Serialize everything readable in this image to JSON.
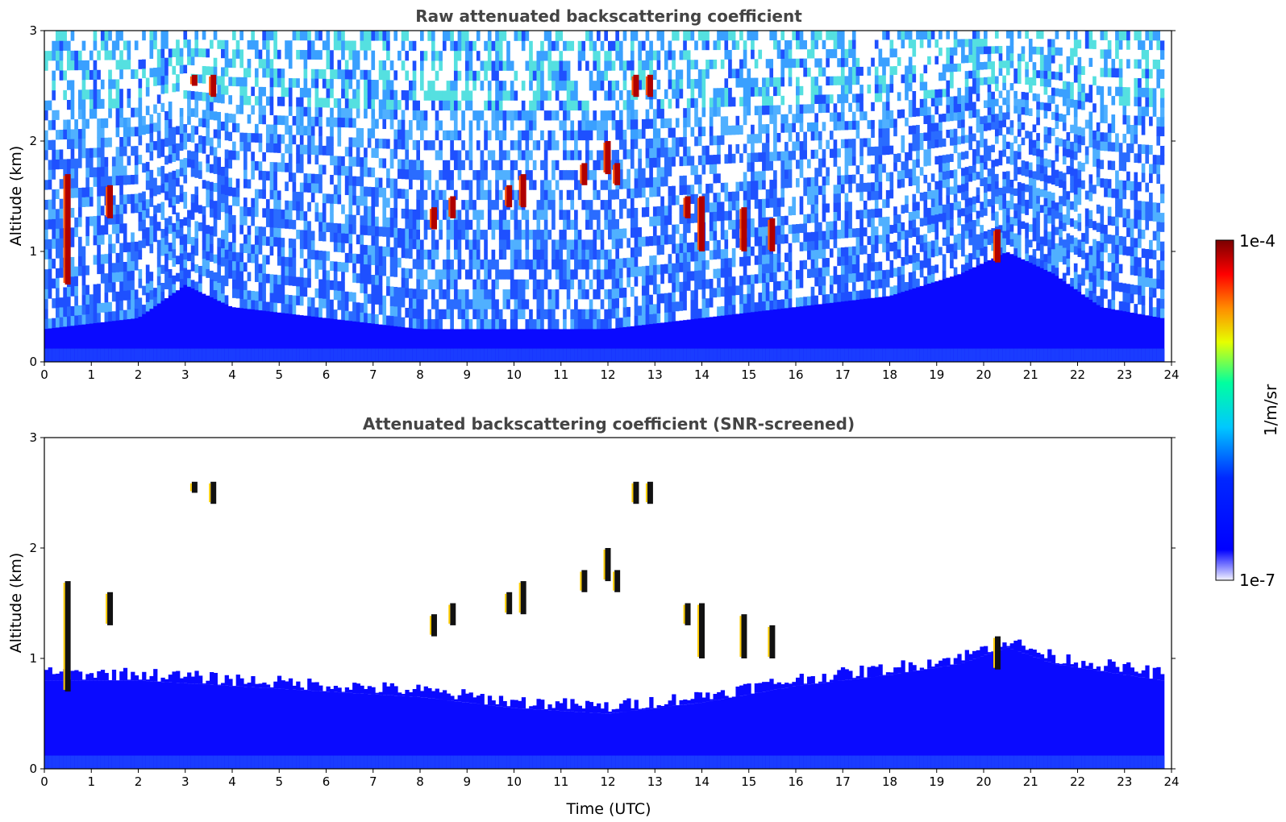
{
  "chart_data": [
    {
      "type": "heatmap",
      "title": "Raw attenuated backscattering coefficient",
      "xlabel": "",
      "ylabel": "Altitude (km)",
      "xlim": [
        0,
        24
      ],
      "ylim": [
        0,
        3
      ],
      "xticks": [
        "0",
        "1",
        "2",
        "3",
        "4",
        "5",
        "6",
        "7",
        "8",
        "9",
        "10",
        "11",
        "12",
        "13",
        "14",
        "15",
        "16",
        "17",
        "18",
        "19",
        "20",
        "21",
        "22",
        "23",
        "24"
      ],
      "yticks": [
        "0",
        "1",
        "2",
        "3"
      ],
      "data_end_time": 23.8,
      "boundary_layer_top_km": [
        [
          0,
          0.3
        ],
        [
          2,
          0.4
        ],
        [
          3,
          0.7
        ],
        [
          4,
          0.5
        ],
        [
          6,
          0.4
        ],
        [
          8,
          0.3
        ],
        [
          10,
          0.3
        ],
        [
          12,
          0.3
        ],
        [
          14,
          0.4
        ],
        [
          16,
          0.5
        ],
        [
          18,
          0.6
        ],
        [
          19.5,
          0.8
        ],
        [
          20.5,
          1.0
        ],
        [
          21.5,
          0.8
        ],
        [
          22.5,
          0.5
        ],
        [
          23.8,
          0.4
        ]
      ],
      "cloud_features": [
        {
          "t": 0.5,
          "z0": 0.7,
          "z1": 1.7
        },
        {
          "t": 1.4,
          "z0": 1.3,
          "z1": 1.6
        },
        {
          "t": 3.2,
          "z0": 2.5,
          "z1": 2.6
        },
        {
          "t": 3.6,
          "z0": 2.4,
          "z1": 2.6
        },
        {
          "t": 8.3,
          "z0": 1.2,
          "z1": 1.4
        },
        {
          "t": 8.7,
          "z0": 1.3,
          "z1": 1.5
        },
        {
          "t": 9.9,
          "z0": 1.4,
          "z1": 1.6
        },
        {
          "t": 10.2,
          "z0": 1.4,
          "z1": 1.7
        },
        {
          "t": 11.5,
          "z0": 1.6,
          "z1": 1.8
        },
        {
          "t": 12.0,
          "z0": 1.7,
          "z1": 2.0
        },
        {
          "t": 12.2,
          "z0": 1.6,
          "z1": 1.8
        },
        {
          "t": 12.6,
          "z0": 2.4,
          "z1": 2.6
        },
        {
          "t": 12.9,
          "z0": 2.4,
          "z1": 2.6
        },
        {
          "t": 13.7,
          "z0": 1.3,
          "z1": 1.5
        },
        {
          "t": 14.0,
          "z0": 1.0,
          "z1": 1.5
        },
        {
          "t": 14.9,
          "z0": 1.0,
          "z1": 1.4
        },
        {
          "t": 15.5,
          "z0": 1.0,
          "z1": 1.3
        },
        {
          "t": 20.3,
          "z0": 0.9,
          "z1": 1.2
        }
      ]
    },
    {
      "type": "heatmap",
      "title": "Attenuated backscattering coefficient (SNR-screened)",
      "xlabel": "Time (UTC)",
      "ylabel": "Altitude (km)",
      "xlim": [
        0,
        24
      ],
      "ylim": [
        0,
        3
      ],
      "xticks": [
        "0",
        "1",
        "2",
        "3",
        "4",
        "5",
        "6",
        "7",
        "8",
        "9",
        "10",
        "11",
        "12",
        "13",
        "14",
        "15",
        "16",
        "17",
        "18",
        "19",
        "20",
        "21",
        "22",
        "23",
        "24"
      ],
      "yticks": [
        "0",
        "1",
        "2",
        "3"
      ],
      "data_end_time": 23.8,
      "boundary_layer_top_km": [
        [
          0,
          0.8
        ],
        [
          2,
          0.8
        ],
        [
          4,
          0.75
        ],
        [
          6,
          0.7
        ],
        [
          8,
          0.65
        ],
        [
          10,
          0.55
        ],
        [
          12,
          0.5
        ],
        [
          14,
          0.6
        ],
        [
          16,
          0.75
        ],
        [
          18,
          0.85
        ],
        [
          19.5,
          0.95
        ],
        [
          20.5,
          1.1
        ],
        [
          21.5,
          0.95
        ],
        [
          23.8,
          0.8
        ]
      ]
    }
  ],
  "colorbar": {
    "label": "1/m/sr",
    "max_label": "1e-4",
    "min_label": "1e-7",
    "colors": [
      "#ffffff",
      "#0000ff",
      "#00c8ff",
      "#00ffa0",
      "#e6ff00",
      "#ff8c00",
      "#ff0000",
      "#7a0000"
    ]
  }
}
